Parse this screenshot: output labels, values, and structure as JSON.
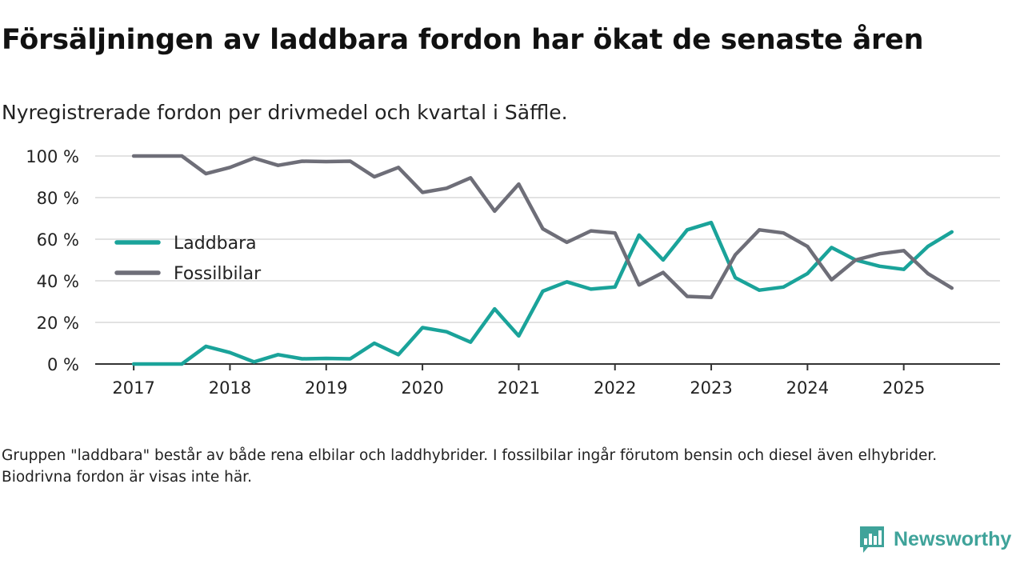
{
  "header": {
    "title": "Försäljningen av laddbara fordon har ökat de senaste åren",
    "subtitle": "Nyregistrerade fordon per drivmedel och kvartal i Säffle."
  },
  "footer": {
    "note": "Gruppen \"laddbara\" består av både rena elbilar och laddhybrider. I fossilbilar ingår förutom bensin och diesel även elhybrider. Biodrivna fordon är visas inte här.",
    "brand": "Newsworthy"
  },
  "colors": {
    "laddbara": "#1aa39a",
    "fossil": "#6e6e78",
    "grid": "#d9d9d9",
    "axis": "#333333",
    "brand": "#3fa39a"
  },
  "chart_data": {
    "type": "line",
    "title": "Försäljningen av laddbara fordon har ökat de senaste åren",
    "subtitle": "Nyregistrerade fordon per drivmedel och kvartal i Säffle.",
    "xlabel": "",
    "ylabel": "",
    "x_start": 2017.0,
    "x_step": 0.25,
    "xlim": [
      2016.6,
      2026.0
    ],
    "ylim": [
      0,
      100
    ],
    "x_ticks": [
      2017,
      2018,
      2019,
      2020,
      2021,
      2022,
      2023,
      2024,
      2025
    ],
    "x_tick_labels": [
      "2017",
      "2018",
      "2019",
      "2020",
      "2021",
      "2022",
      "2023",
      "2024",
      "2025"
    ],
    "y_ticks": [
      0,
      20,
      40,
      60,
      80,
      100
    ],
    "y_tick_labels": [
      "0 %",
      "20 %",
      "40 %",
      "60 %",
      "80 %",
      "100 %"
    ],
    "grid": true,
    "legend_position": "left-middle",
    "series": [
      {
        "name": "Laddbara",
        "color": "#1aa39a",
        "values": [
          0,
          0,
          0,
          8.5,
          5.5,
          1,
          4.5,
          2.5,
          2.7,
          2.5,
          10,
          4.5,
          17.5,
          15.5,
          10.5,
          26.5,
          13.5,
          35,
          39.5,
          36,
          37,
          62,
          50,
          64.5,
          68,
          41.5,
          35.5,
          37,
          43.5,
          56,
          50,
          47,
          45.5,
          56.5,
          63.5
        ]
      },
      {
        "name": "Fossilbilar",
        "color": "#6e6e78",
        "values": [
          100,
          100,
          100,
          91.5,
          94.5,
          99,
          95.5,
          97.5,
          97.3,
          97.5,
          90,
          94.5,
          82.5,
          84.5,
          89.5,
          73.5,
          86.5,
          65,
          58.5,
          64,
          63,
          38,
          44,
          32.5,
          32,
          52.5,
          64.5,
          63,
          56.5,
          40.5,
          50,
          53,
          54.5,
          43.5,
          36.5
        ]
      }
    ]
  }
}
